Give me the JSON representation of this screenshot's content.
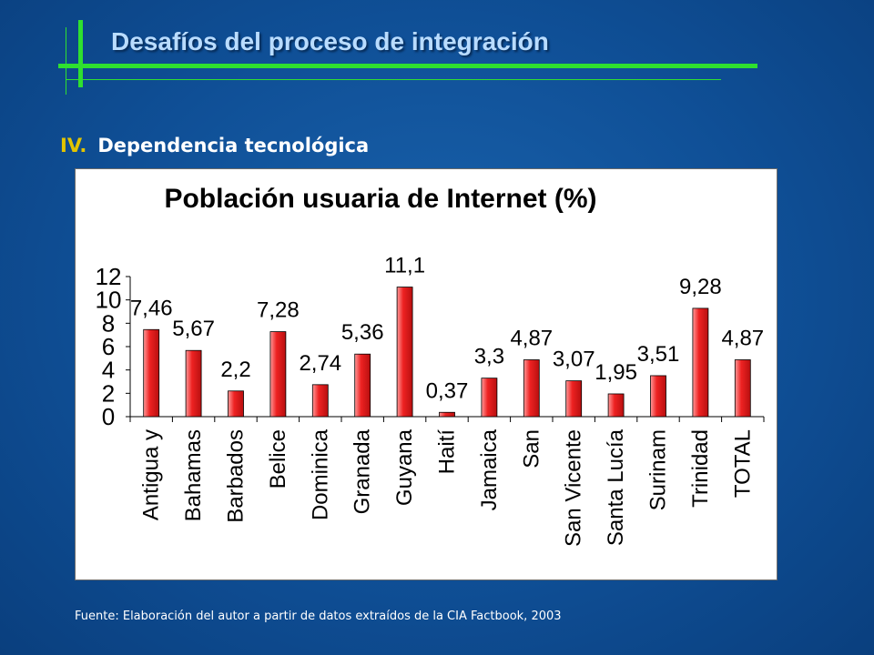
{
  "slide": {
    "title": "Desafíos del proceso de integración",
    "section_number": "IV.",
    "section_title": "Dependencia tecnológica",
    "source": "Fuente: Elaboración del autor a partir de datos extraídos de la CIA Factbook, 2003",
    "colors": {
      "background": "#0f4f96",
      "accent_green": "#2fe02f",
      "title": "#b9dcff",
      "section_number": "#e2c400",
      "bar": "#ee2222"
    }
  },
  "chart_data": {
    "type": "bar",
    "title": "Población usuaria de Internet (%)",
    "xlabel": "",
    "ylabel": "",
    "ylim": [
      0,
      12
    ],
    "yticks": [
      0,
      2,
      4,
      6,
      8,
      10,
      12
    ],
    "grid": false,
    "legend": "none",
    "categories": [
      "Antigua y",
      "Bahamas",
      "Barbados",
      "Belice",
      "Dominica",
      "Granada",
      "Guyana",
      "Haití",
      "Jamaica",
      "San",
      "San Vicente",
      "Santa Lucía",
      "Surinam",
      "Trinidad",
      "TOTAL"
    ],
    "values": [
      7.46,
      5.67,
      2.2,
      7.28,
      2.74,
      5.36,
      11.1,
      0.37,
      3.3,
      4.87,
      3.07,
      1.95,
      3.51,
      9.28,
      4.87
    ],
    "value_labels": [
      "7,46",
      "5,67",
      "2,2",
      "7,28",
      "2,74",
      "5,36",
      "11,1",
      "0,37",
      "3,3",
      "4,87",
      "3,07",
      "1,95",
      "3,51",
      "9,28",
      "4,87"
    ]
  }
}
